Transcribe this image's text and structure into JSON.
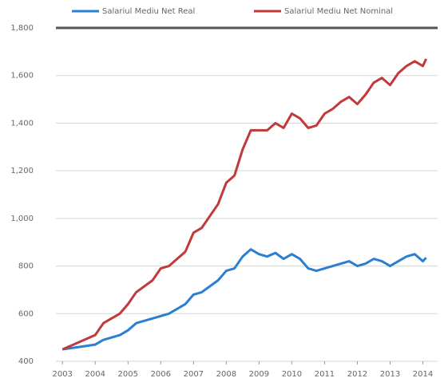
{
  "chart_data": {
    "type": "line",
    "x": [
      2003,
      2003.5,
      2004,
      2004.25,
      2004.75,
      2005,
      2005.25,
      2005.75,
      2006,
      2006.25,
      2006.75,
      2007,
      2007.25,
      2007.75,
      2008,
      2008.25,
      2008.5,
      2008.75,
      2009,
      2009.25,
      2009.5,
      2009.75,
      2010,
      2010.25,
      2010.5,
      2010.75,
      2011,
      2011.25,
      2011.5,
      2011.75,
      2012,
      2012.25,
      2012.5,
      2012.75,
      2013,
      2013.25,
      2013.5,
      2013.75,
      2014,
      2014.1
    ],
    "series": [
      {
        "name": "Salariul Mediu Net Real",
        "color": "#2a7fd0",
        "values": [
          450,
          460,
          470,
          490,
          510,
          530,
          560,
          580,
          590,
          600,
          640,
          680,
          690,
          740,
          780,
          790,
          840,
          870,
          850,
          840,
          855,
          830,
          850,
          830,
          790,
          780,
          790,
          800,
          810,
          820,
          800,
          810,
          830,
          820,
          800,
          820,
          840,
          850,
          820,
          835
        ]
      },
      {
        "name": "Salariul Mediu Net Nominal",
        "color": "#c0393b",
        "values": [
          450,
          480,
          510,
          560,
          600,
          640,
          690,
          740,
          790,
          800,
          860,
          940,
          960,
          1060,
          1150,
          1180,
          1290,
          1370,
          1370,
          1370,
          1400,
          1380,
          1440,
          1420,
          1380,
          1390,
          1440,
          1460,
          1490,
          1510,
          1480,
          1520,
          1570,
          1590,
          1560,
          1610,
          1640,
          1660,
          1640,
          1670
        ]
      }
    ],
    "xlim": [
      2002.8,
      2014.45
    ],
    "xticks": [
      2003,
      2004,
      2005,
      2006,
      2007,
      2008,
      2009,
      2010,
      2011,
      2012,
      2013,
      2014
    ],
    "ylim": [
      400,
      1800
    ],
    "yticks": [
      400,
      600,
      800,
      {
        "value": 1000,
        "label": "1,000"
      },
      {
        "value": 1200,
        "label": "1,200"
      },
      {
        "value": 1400,
        "label": "1,400"
      },
      {
        "value": 1600,
        "label": "1,600"
      },
      {
        "value": 1800,
        "label": "1,800"
      }
    ],
    "grid": true,
    "legend": "top"
  }
}
